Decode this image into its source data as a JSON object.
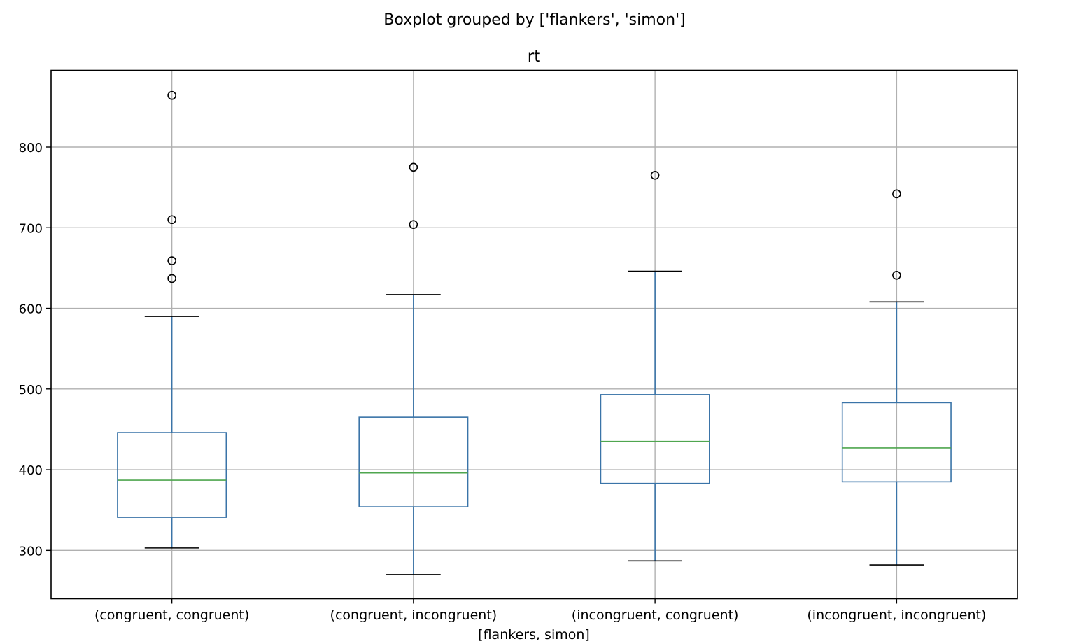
{
  "suptitle": "Boxplot grouped by ['flankers', 'simon']",
  "chart_data": {
    "type": "box",
    "title": "rt",
    "xlabel": "[flankers, simon]",
    "ylabel": "",
    "ylim": [
      240,
      895
    ],
    "yticks": [
      300,
      400,
      500,
      600,
      700,
      800
    ],
    "grid": true,
    "legend": "none",
    "colors": {
      "box": "#3a74a8",
      "median": "#4fa64f",
      "whisker": "#3a74a8",
      "cap": "#000000",
      "flier": "#000000",
      "grid": "#b0b0b0"
    },
    "categories": [
      "(congruent, congruent)",
      "(congruent, incongruent)",
      "(incongruent, congruent)",
      "(incongruent, incongruent)"
    ],
    "boxes": [
      {
        "category": "(congruent, congruent)",
        "whislo": 303,
        "q1": 341,
        "median": 387,
        "q3": 446,
        "whishi": 590,
        "fliers": [
          637,
          659,
          710,
          864
        ]
      },
      {
        "category": "(congruent, incongruent)",
        "whislo": 270,
        "q1": 354,
        "median": 396,
        "q3": 465,
        "whishi": 617,
        "fliers": [
          704,
          775
        ]
      },
      {
        "category": "(incongruent, congruent)",
        "whislo": 287,
        "q1": 383,
        "median": 435,
        "q3": 493,
        "whishi": 646,
        "fliers": [
          765
        ]
      },
      {
        "category": "(incongruent, incongruent)",
        "whislo": 282,
        "q1": 385,
        "median": 427,
        "q3": 483,
        "whishi": 608,
        "fliers": [
          641,
          742
        ]
      }
    ]
  }
}
